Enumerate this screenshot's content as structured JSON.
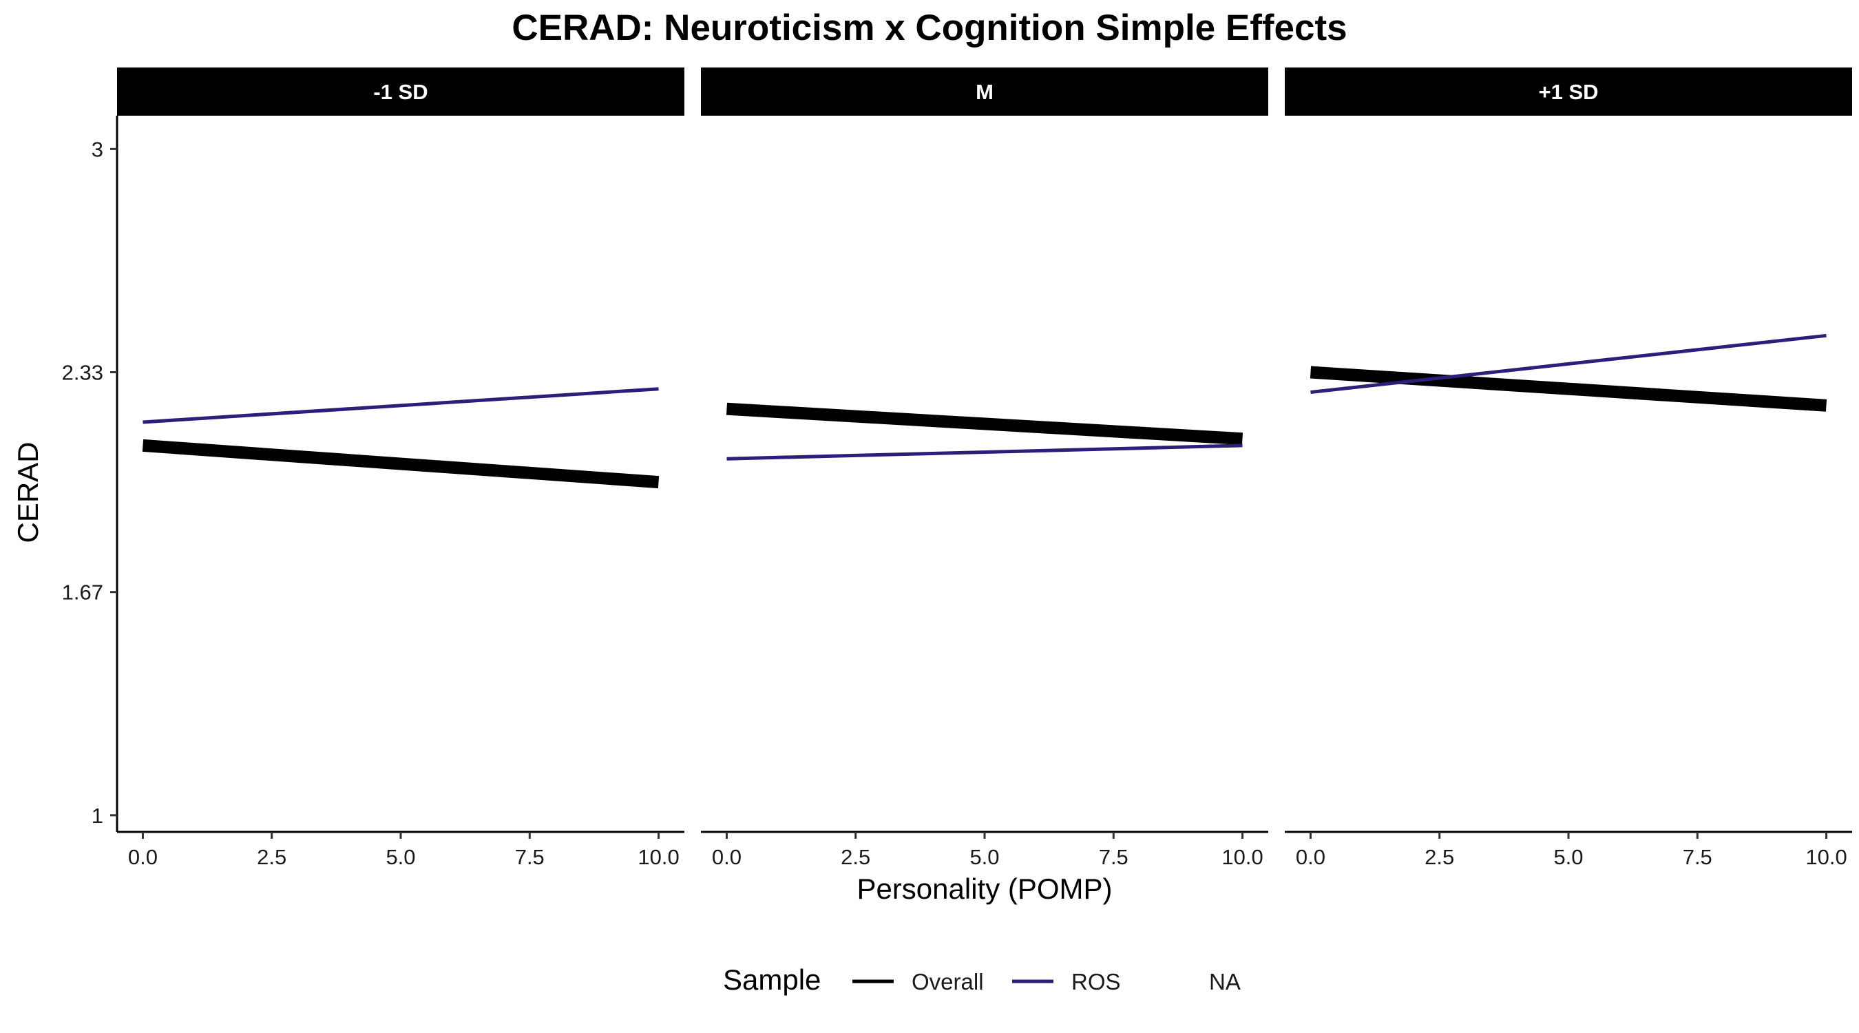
{
  "chart_data": {
    "type": "line",
    "title": "CERAD: Neuroticism x Cognition Simple Effects",
    "xlabel": "Personality (POMP)",
    "ylabel": "CERAD",
    "xlim": [
      -0.5,
      10.5
    ],
    "ylim": [
      0.95,
      3.1
    ],
    "x_ticks": [
      0,
      2.5,
      5,
      7.5,
      10
    ],
    "x_tick_labels": [
      "0.0",
      "2.5",
      "5.0",
      "7.5",
      "10.0"
    ],
    "y_ticks": [
      1,
      1.67,
      2.33,
      3
    ],
    "y_tick_labels": [
      "1",
      "1.67",
      "2.33",
      "3"
    ],
    "grid": false,
    "legend": {
      "title": "Sample",
      "position": "bottom",
      "entries": [
        {
          "label": "Overall",
          "color": "#000000"
        },
        {
          "label": "ROS",
          "color": "#2d1e7a"
        },
        {
          "label": "NA",
          "color": null
        }
      ]
    },
    "panels": [
      {
        "label": "-1 SD",
        "series": [
          {
            "name": "Overall",
            "color": "#000000",
            "thick": true,
            "x": [
              0,
              10
            ],
            "y": [
              2.11,
              2.0
            ]
          },
          {
            "name": "ROS",
            "color": "#2d1e7a",
            "thick": false,
            "x": [
              0,
              10
            ],
            "y": [
              2.18,
              2.28
            ]
          }
        ]
      },
      {
        "label": "M",
        "series": [
          {
            "name": "Overall",
            "color": "#000000",
            "thick": true,
            "x": [
              0,
              10
            ],
            "y": [
              2.22,
              2.13
            ]
          },
          {
            "name": "ROS",
            "color": "#2d1e7a",
            "thick": false,
            "x": [
              0,
              10
            ],
            "y": [
              2.07,
              2.11
            ]
          }
        ]
      },
      {
        "label": "+1 SD",
        "series": [
          {
            "name": "Overall",
            "color": "#000000",
            "thick": true,
            "x": [
              0,
              10
            ],
            "y": [
              2.33,
              2.23
            ]
          },
          {
            "name": "ROS",
            "color": "#2d1e7a",
            "thick": false,
            "x": [
              0,
              10
            ],
            "y": [
              2.27,
              2.44
            ]
          }
        ]
      }
    ]
  }
}
